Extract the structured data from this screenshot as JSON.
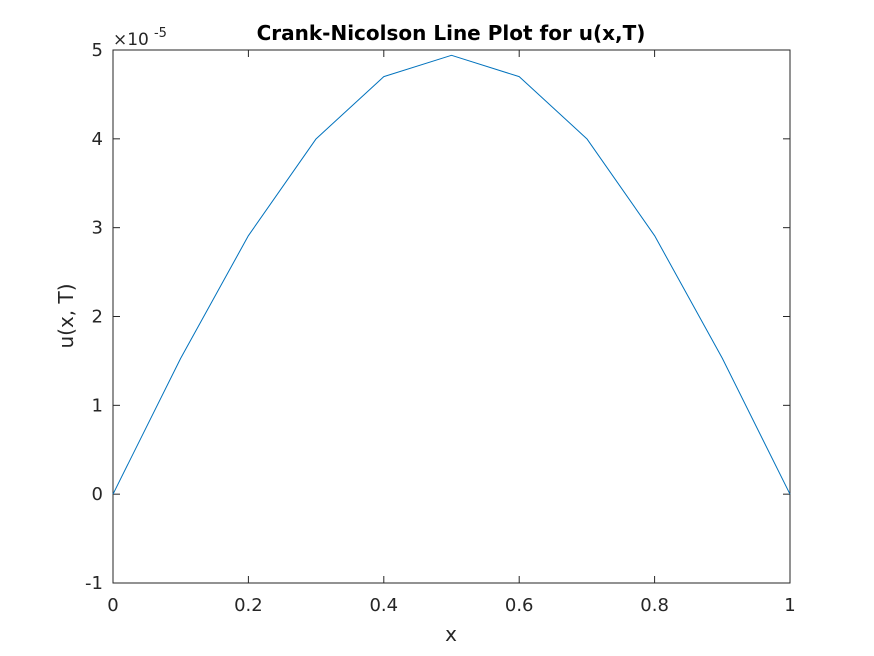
{
  "chart_data": {
    "type": "line",
    "title": "Crank-Nicolson Line Plot for u(x,T)",
    "xlabel": "x",
    "ylabel": "u(x, T)",
    "xlim": [
      0,
      1
    ],
    "ylim": [
      -1e-05,
      5e-05
    ],
    "x_ticks": [
      0,
      0.2,
      0.4,
      0.6,
      0.8,
      1
    ],
    "x_tick_labels": [
      "0",
      "0.2",
      "0.4",
      "0.6",
      "0.8",
      "1"
    ],
    "y_ticks": [
      -1,
      0,
      1,
      2,
      3,
      4,
      5
    ],
    "y_tick_labels": [
      "-1",
      "0",
      "1",
      "2",
      "3",
      "4",
      "5"
    ],
    "y_exponent_label": {
      "base": "×10",
      "exponent": "-5"
    },
    "y_multiplier": 1e-05,
    "grid": false,
    "line_color": "#0072bd",
    "axis_color": "#262626",
    "series": [
      {
        "x": [
          0,
          0.1,
          0.2,
          0.3,
          0.4,
          0.5,
          0.6,
          0.7,
          0.8,
          0.9,
          1.0
        ],
        "y": [
          0,
          1.53e-05,
          2.91e-05,
          4e-05,
          4.7e-05,
          4.94e-05,
          4.7e-05,
          4e-05,
          2.91e-05,
          1.53e-05,
          0
        ]
      }
    ]
  }
}
